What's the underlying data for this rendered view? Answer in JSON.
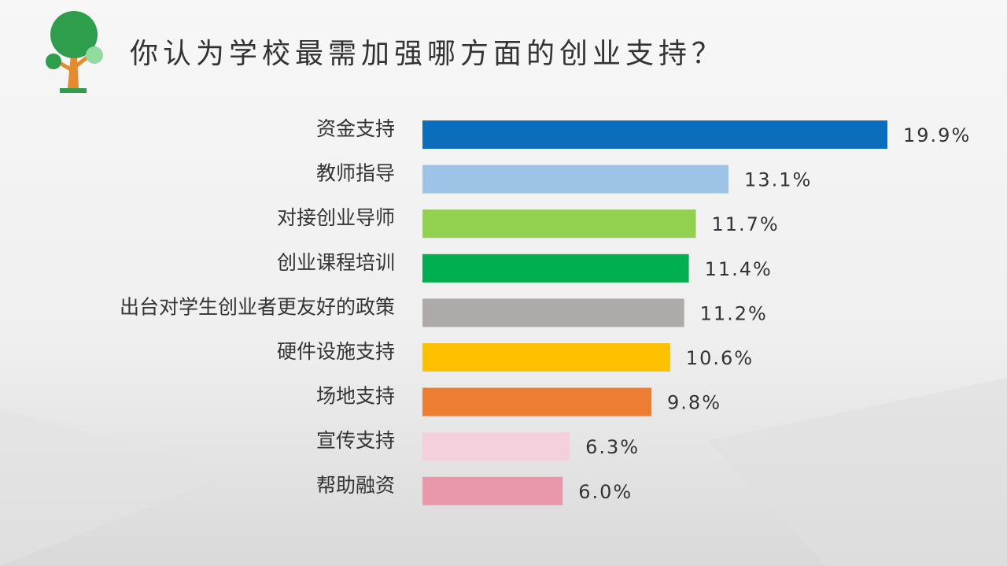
{
  "chart_data": {
    "type": "bar",
    "orientation": "horizontal",
    "title": "你认为学校最需加强哪方面的创业支持？",
    "categories": [
      "资金支持",
      "教师指导",
      "对接创业导师",
      "创业课程培训",
      "出台对学生创业者更友好的政策",
      "硬件设施支持",
      "场地支持",
      "宣传支持",
      "帮助融资"
    ],
    "values": [
      19.9,
      13.1,
      11.7,
      11.4,
      11.2,
      10.6,
      9.8,
      6.3,
      6.0
    ],
    "value_labels": [
      "19.9%",
      "13.1%",
      "11.7%",
      "11.4%",
      "11.2%",
      "10.6%",
      "9.8%",
      "6.3%",
      "6.0%"
    ],
    "colors": [
      "#0a6ebd",
      "#9dc3e6",
      "#92d050",
      "#00b050",
      "#aeaaaa",
      "#ffc000",
      "#ed7d31",
      "#f4cfdc",
      "#e997ab"
    ]
  }
}
